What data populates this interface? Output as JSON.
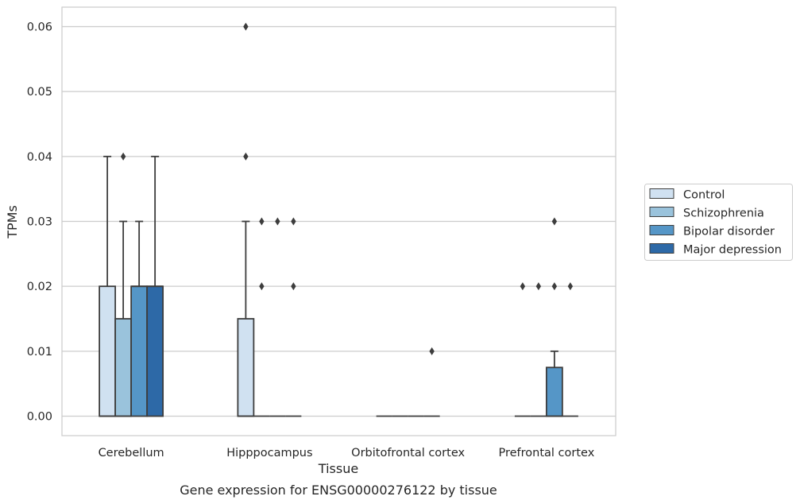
{
  "chart_data": {
    "type": "boxplot",
    "caption": "Gene expression for ENSG00000276122 by tissue",
    "xlabel": "Tissue",
    "ylabel": "TPMs",
    "ylim": [
      -0.003,
      0.063
    ],
    "yticks": [
      "0.00",
      "0.01",
      "0.02",
      "0.03",
      "0.04",
      "0.05",
      "0.06"
    ],
    "ytick_values": [
      0,
      0.01,
      0.02,
      0.03,
      0.04,
      0.05,
      0.06
    ],
    "grid": "horizontal",
    "legend_position": "outside-right",
    "categories": [
      "Cerebellum",
      "Hipppocampus",
      "Orbitofrontal cortex",
      "Prefrontal cortex"
    ],
    "series": [
      {
        "name": "Control",
        "color": "#d0e1f1",
        "boxes": [
          {
            "q1": 0,
            "median": 0,
            "q3": 0.02,
            "whisker_low": 0,
            "whisker_high": 0.04,
            "outliers": []
          },
          {
            "q1": 0,
            "median": 0,
            "q3": 0.015,
            "whisker_low": 0,
            "whisker_high": 0.03,
            "outliers": [
              0.06,
              0.04
            ]
          },
          {
            "q1": 0,
            "median": 0,
            "q3": 0,
            "whisker_low": 0,
            "whisker_high": 0,
            "outliers": []
          },
          {
            "q1": 0,
            "median": 0,
            "q3": 0,
            "whisker_low": 0,
            "whisker_high": 0,
            "outliers": [
              0.02
            ]
          }
        ]
      },
      {
        "name": "Schizophrenia",
        "color": "#9ac3dc",
        "boxes": [
          {
            "q1": 0,
            "median": 0,
            "q3": 0.015,
            "whisker_low": 0,
            "whisker_high": 0.03,
            "outliers": [
              0.04
            ]
          },
          {
            "q1": 0,
            "median": 0,
            "q3": 0,
            "whisker_low": 0,
            "whisker_high": 0,
            "outliers": [
              0.03,
              0.02
            ]
          },
          {
            "q1": 0,
            "median": 0,
            "q3": 0,
            "whisker_low": 0,
            "whisker_high": 0,
            "outliers": []
          },
          {
            "q1": 0,
            "median": 0,
            "q3": 0,
            "whisker_low": 0,
            "whisker_high": 0,
            "outliers": [
              0.02
            ]
          }
        ]
      },
      {
        "name": "Bipolar disorder",
        "color": "#5596c7",
        "boxes": [
          {
            "q1": 0,
            "median": 0.02,
            "q3": 0.02,
            "whisker_low": 0,
            "whisker_high": 0.03,
            "outliers": []
          },
          {
            "q1": 0,
            "median": 0,
            "q3": 0,
            "whisker_low": 0,
            "whisker_high": 0,
            "outliers": [
              0.03
            ]
          },
          {
            "q1": 0,
            "median": 0,
            "q3": 0,
            "whisker_low": 0,
            "whisker_high": 0,
            "outliers": []
          },
          {
            "q1": 0,
            "median": 0,
            "q3": 0.0075,
            "whisker_low": 0,
            "whisker_high": 0.01,
            "outliers": [
              0.03,
              0.02
            ]
          }
        ]
      },
      {
        "name": "Major depression",
        "color": "#2d69a7",
        "boxes": [
          {
            "q1": 0,
            "median": 0.02,
            "q3": 0.02,
            "whisker_low": 0,
            "whisker_high": 0.04,
            "outliers": []
          },
          {
            "q1": 0,
            "median": 0,
            "q3": 0,
            "whisker_low": 0,
            "whisker_high": 0,
            "outliers": [
              0.03,
              0.02
            ]
          },
          {
            "q1": 0,
            "median": 0,
            "q3": 0,
            "whisker_low": 0,
            "whisker_high": 0,
            "outliers": [
              0.01
            ]
          },
          {
            "q1": 0,
            "median": 0,
            "q3": 0,
            "whisker_low": 0,
            "whisker_high": 0,
            "outliers": [
              0.02
            ]
          }
        ]
      }
    ]
  }
}
